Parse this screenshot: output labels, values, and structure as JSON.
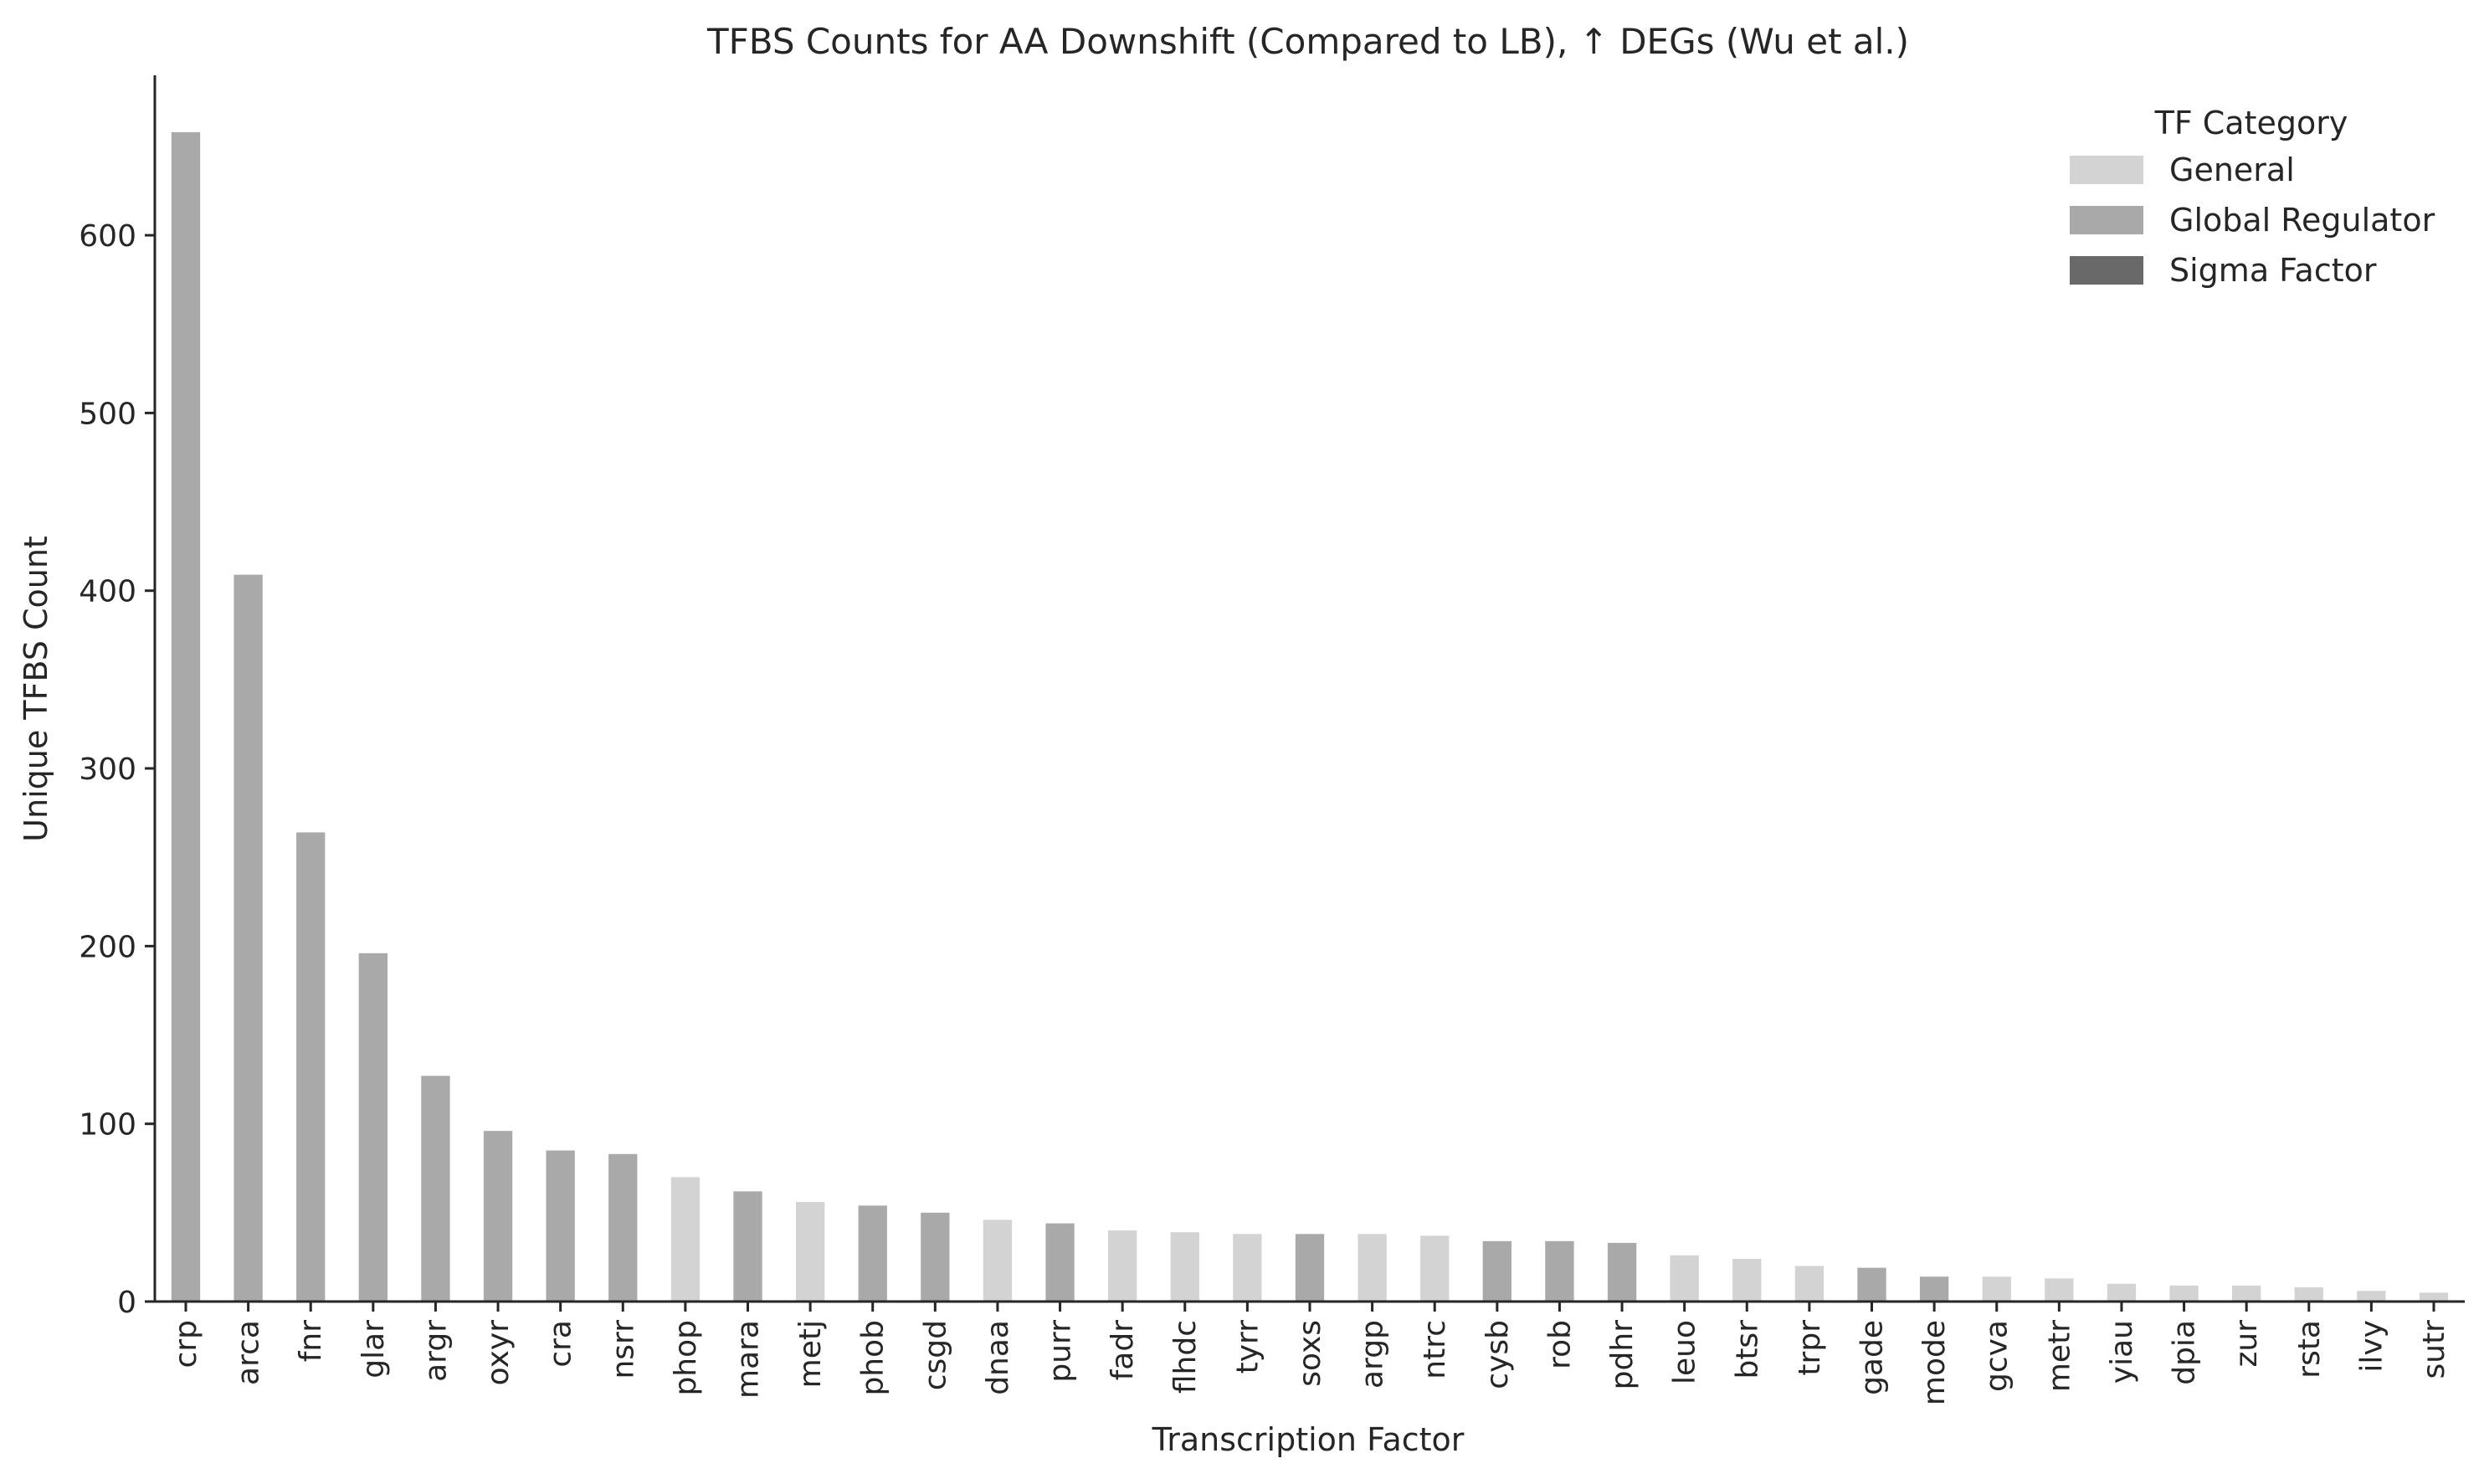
{
  "chart_data": {
    "type": "bar",
    "title": "TFBS Counts for AA Downshift (Compared to LB), ↑ DEGs (Wu et al.)",
    "xlabel": "Transcription Factor",
    "ylabel": "Unique TFBS Count",
    "ylim": [
      0,
      690
    ],
    "yticks": [
      0,
      100,
      200,
      300,
      400,
      500,
      600
    ],
    "grid": false,
    "legend": {
      "title": "TF Category",
      "placement": "top-right",
      "entries": [
        {
          "label": "General",
          "color": "#d3d3d3"
        },
        {
          "label": "Global Regulator",
          "color": "#a9a9a9"
        },
        {
          "label": "Sigma Factor",
          "color": "#696969"
        }
      ]
    },
    "categories": [
      "crp",
      "arca",
      "fnr",
      "glar",
      "argr",
      "oxyr",
      "cra",
      "nsrr",
      "phop",
      "mara",
      "metj",
      "phob",
      "csgd",
      "dnaa",
      "purr",
      "fadr",
      "flhdc",
      "tyrr",
      "soxs",
      "argp",
      "ntrc",
      "cysb",
      "rob",
      "pdhr",
      "leuo",
      "btsr",
      "trpr",
      "gade",
      "mode",
      "gcva",
      "metr",
      "yiau",
      "dpia",
      "zur",
      "rsta",
      "ilvy",
      "sutr"
    ],
    "values": [
      658,
      409,
      264,
      196,
      127,
      96,
      85,
      83,
      70,
      62,
      56,
      54,
      50,
      46,
      44,
      40,
      39,
      38,
      38,
      38,
      37,
      34,
      34,
      33,
      26,
      24,
      20,
      19,
      14,
      14,
      13,
      10,
      9,
      9,
      8,
      6,
      5
    ],
    "bar_category": [
      "Global Regulator",
      "Global Regulator",
      "Global Regulator",
      "Global Regulator",
      "Global Regulator",
      "Global Regulator",
      "Global Regulator",
      "Global Regulator",
      "General",
      "Global Regulator",
      "General",
      "Global Regulator",
      "Global Regulator",
      "General",
      "Global Regulator",
      "General",
      "General",
      "General",
      "Global Regulator",
      "General",
      "General",
      "Global Regulator",
      "Global Regulator",
      "Global Regulator",
      "General",
      "General",
      "General",
      "Global Regulator",
      "Global Regulator",
      "General",
      "General",
      "General",
      "General",
      "General",
      "General",
      "General",
      "General"
    ]
  }
}
